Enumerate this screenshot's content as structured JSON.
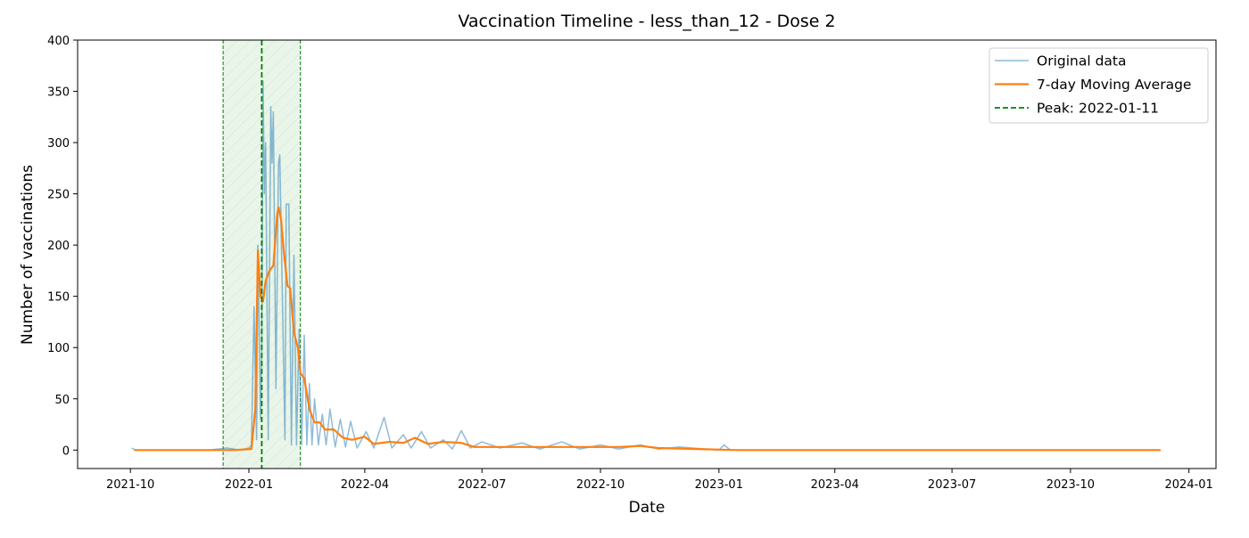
{
  "chart_data": {
    "type": "line",
    "title": "Vaccination Timeline - less_than_12 - Dose 2",
    "x_label": "Date",
    "y_label": "Number of vaccinations",
    "xlim": [
      "2021-08-21",
      "2024-01-22"
    ],
    "xticks": [
      {
        "value": "2021-10-01",
        "label": "2021-10"
      },
      {
        "value": "2022-01-01",
        "label": "2022-01"
      },
      {
        "value": "2022-04-01",
        "label": "2022-04"
      },
      {
        "value": "2022-07-01",
        "label": "2022-07"
      },
      {
        "value": "2022-10-01",
        "label": "2022-10"
      },
      {
        "value": "2023-01-01",
        "label": "2023-01"
      },
      {
        "value": "2023-04-01",
        "label": "2023-04"
      },
      {
        "value": "2023-07-01",
        "label": "2023-07"
      },
      {
        "value": "2023-10-01",
        "label": "2023-10"
      },
      {
        "value": "2024-01-01",
        "label": "2024-01"
      }
    ],
    "ylim": [
      -18,
      400
    ],
    "yticks": [
      0,
      50,
      100,
      150,
      200,
      250,
      300,
      350,
      400
    ],
    "legend": "upper right",
    "peak": {
      "label": "Peak: 2022-01-11",
      "date": "2022-01-11",
      "color": "#008000",
      "window": [
        "2021-12-12",
        "2022-02-10"
      ]
    },
    "series": [
      {
        "name": "Original data",
        "color": "#1f77b4",
        "x": [
          "2021-10-02",
          "2021-10-05",
          "2021-10-20",
          "2021-11-10",
          "2021-12-01",
          "2021-12-15",
          "2021-12-25",
          "2022-01-01",
          "2022-01-03",
          "2022-01-05",
          "2022-01-07",
          "2022-01-08",
          "2022-01-10",
          "2022-01-11",
          "2022-01-12",
          "2022-01-13",
          "2022-01-14",
          "2022-01-16",
          "2022-01-18",
          "2022-01-19",
          "2022-01-20",
          "2022-01-22",
          "2022-01-24",
          "2022-01-25",
          "2022-01-27",
          "2022-01-29",
          "2022-01-30",
          "2022-02-01",
          "2022-02-03",
          "2022-02-05",
          "2022-02-07",
          "2022-02-09",
          "2022-02-11",
          "2022-02-13",
          "2022-02-15",
          "2022-02-17",
          "2022-02-19",
          "2022-02-21",
          "2022-02-24",
          "2022-02-27",
          "2022-03-02",
          "2022-03-05",
          "2022-03-09",
          "2022-03-13",
          "2022-03-17",
          "2022-03-21",
          "2022-03-26",
          "2022-04-02",
          "2022-04-08",
          "2022-04-16",
          "2022-04-22",
          "2022-05-01",
          "2022-05-07",
          "2022-05-15",
          "2022-05-22",
          "2022-06-01",
          "2022-06-08",
          "2022-06-15",
          "2022-06-22",
          "2022-07-01",
          "2022-07-15",
          "2022-08-01",
          "2022-08-15",
          "2022-09-01",
          "2022-09-15",
          "2022-10-01",
          "2022-10-15",
          "2022-11-01",
          "2022-11-15",
          "2022-12-01",
          "2023-01-01",
          "2023-01-05",
          "2023-01-10",
          "2023-03-01",
          "2023-06-01",
          "2023-09-01",
          "2023-12-10"
        ],
        "values": [
          2,
          0,
          0,
          0,
          0,
          2,
          0,
          2,
          5,
          140,
          10,
          200,
          30,
          100,
          360,
          250,
          300,
          10,
          335,
          280,
          330,
          60,
          280,
          288,
          150,
          10,
          240,
          240,
          5,
          190,
          5,
          118,
          5,
          112,
          5,
          65,
          5,
          50,
          5,
          35,
          5,
          40,
          3,
          30,
          3,
          28,
          2,
          18,
          2,
          32,
          2,
          15,
          2,
          18,
          2,
          10,
          1,
          19,
          2,
          8,
          2,
          7,
          1,
          8,
          1,
          5,
          1,
          5,
          1,
          3,
          0,
          5,
          0,
          0,
          0,
          0,
          0
        ]
      },
      {
        "name": "7-day Moving Average",
        "color": "#ff7f0e",
        "x": [
          "2021-10-04",
          "2021-12-20",
          "2022-01-03",
          "2022-01-06",
          "2022-01-08",
          "2022-01-10",
          "2022-01-12",
          "2022-01-14",
          "2022-01-17",
          "2022-01-20",
          "2022-01-23",
          "2022-01-24",
          "2022-01-26",
          "2022-01-28",
          "2022-01-31",
          "2022-02-02",
          "2022-02-05",
          "2022-02-08",
          "2022-02-10",
          "2022-02-13",
          "2022-02-17",
          "2022-02-21",
          "2022-02-25",
          "2022-03-01",
          "2022-03-08",
          "2022-03-15",
          "2022-03-22",
          "2022-04-01",
          "2022-04-08",
          "2022-04-20",
          "2022-05-01",
          "2022-05-10",
          "2022-05-20",
          "2022-06-01",
          "2022-06-15",
          "2022-06-25",
          "2022-07-15",
          "2022-08-15",
          "2022-09-15",
          "2022-10-15",
          "2022-11-01",
          "2022-11-15",
          "2022-12-15",
          "2023-01-15",
          "2023-12-10"
        ],
        "values": [
          0,
          0,
          1,
          40,
          195,
          150,
          145,
          165,
          175,
          180,
          230,
          237,
          225,
          195,
          160,
          158,
          115,
          100,
          75,
          70,
          40,
          27,
          27,
          20,
          20,
          12,
          10,
          13,
          6,
          8,
          7,
          12,
          6,
          8,
          7,
          3,
          3,
          3,
          3,
          3,
          4,
          2,
          1,
          0,
          0
        ]
      }
    ]
  }
}
